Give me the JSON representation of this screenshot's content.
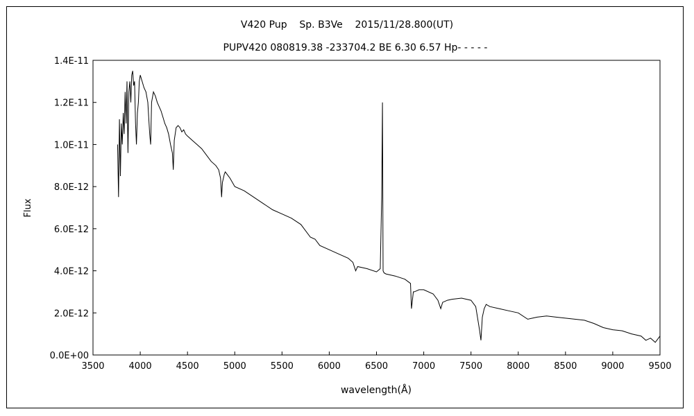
{
  "chart_data": {
    "type": "line",
    "title": "V420 Pup    Sp. B3Ve    2015/11/28.800(UT)",
    "subtitle": "PUPV420 080819.38 -233704.2 BE 6.30 6.57 Hp- - - - -",
    "xlabel": "wavelength(Å)",
    "ylabel": "Flux",
    "xlim": [
      3500,
      9500
    ],
    "ylim": [
      0,
      1.4e-11
    ],
    "x_ticks": [
      3500,
      4000,
      4500,
      5000,
      5500,
      6000,
      6500,
      7000,
      7500,
      8000,
      8500,
      9000,
      9500
    ],
    "x_tick_labels": [
      "3500",
      "4000",
      "4500",
      "5000",
      "5500",
      "6000",
      "6500",
      "7000",
      "7500",
      "8000",
      "8500",
      "9000",
      "9500"
    ],
    "y_ticks": [
      0,
      2e-12,
      4e-12,
      6e-12,
      8e-12,
      1e-11,
      1.2e-11,
      1.4e-11
    ],
    "y_tick_labels": [
      "0.0E+00",
      "2.0E-12",
      "4.0E-12",
      "6.0E-12",
      "8.0E-12",
      "1.0E-11",
      "1.2E-11",
      "1.4E-11"
    ],
    "grid": false,
    "series": [
      {
        "color": "#000000",
        "x": [
          3760,
          3770,
          3780,
          3790,
          3800,
          3810,
          3820,
          3830,
          3840,
          3850,
          3860,
          3870,
          3880,
          3890,
          3900,
          3910,
          3920,
          3930,
          3940,
          3950,
          3960,
          3970,
          3980,
          3990,
          4000,
          4020,
          4040,
          4060,
          4080,
          4100,
          4110,
          4120,
          4140,
          4160,
          4180,
          4200,
          4220,
          4240,
          4260,
          4280,
          4300,
          4320,
          4340,
          4350,
          4360,
          4380,
          4400,
          4420,
          4440,
          4460,
          4480,
          4500,
          4550,
          4600,
          4650,
          4700,
          4750,
          4800,
          4830,
          4850,
          4861,
          4870,
          4890,
          4900,
          4950,
          5000,
          5100,
          5200,
          5300,
          5400,
          5500,
          5600,
          5700,
          5800,
          5850,
          5900,
          6000,
          6100,
          6200,
          6250,
          6280,
          6300,
          6400,
          6500,
          6540,
          6555,
          6563,
          6570,
          6580,
          6600,
          6700,
          6800,
          6860,
          6870,
          6890,
          6900,
          6950,
          7000,
          7100,
          7150,
          7180,
          7200,
          7250,
          7300,
          7400,
          7500,
          7550,
          7590,
          7605,
          7620,
          7640,
          7660,
          7700,
          7800,
          7900,
          8000,
          8100,
          8150,
          8200,
          8300,
          8400,
          8500,
          8600,
          8700,
          8800,
          8900,
          9000,
          9100,
          9200,
          9300,
          9350,
          9400,
          9450,
          9500
        ],
        "y": [
          1e-11,
          7.5e-12,
          1.12e-11,
          8.5e-12,
          1.1e-11,
          1e-11,
          1.15e-11,
          1.05e-11,
          1.25e-11,
          1.1e-11,
          1.3e-11,
          9.6e-12,
          1.25e-11,
          1.3e-11,
          1.2e-11,
          1.33e-11,
          1.35e-11,
          1.28e-11,
          1.3e-11,
          1.1e-11,
          1e-11,
          1.15e-11,
          1.2e-11,
          1.3e-11,
          1.33e-11,
          1.3e-11,
          1.27e-11,
          1.25e-11,
          1.2e-11,
          1.05e-11,
          1e-11,
          1.2e-11,
          1.25e-11,
          1.23e-11,
          1.2e-11,
          1.18e-11,
          1.16e-11,
          1.13e-11,
          1.1e-11,
          1.08e-11,
          1.05e-11,
          1e-11,
          9.6e-12,
          8.8e-12,
          1.02e-11,
          1.08e-11,
          1.09e-11,
          1.08e-11,
          1.06e-11,
          1.07e-11,
          1.05e-11,
          1.04e-11,
          1.02e-11,
          1e-11,
          9.8e-12,
          9.5e-12,
          9.2e-12,
          9e-12,
          8.8e-12,
          8.4e-12,
          7.5e-12,
          8.2e-12,
          8.6e-12,
          8.7e-12,
          8.4e-12,
          8e-12,
          7.8e-12,
          7.5e-12,
          7.2e-12,
          6.9e-12,
          6.7e-12,
          6.5e-12,
          6.2e-12,
          5.6e-12,
          5.5e-12,
          5.2e-12,
          5e-12,
          4.8e-12,
          4.6e-12,
          4.4e-12,
          4e-12,
          4.2e-12,
          4.1e-12,
          3.95e-12,
          4.1e-12,
          7.5e-12,
          1.2e-11,
          4e-12,
          3.9e-12,
          3.85e-12,
          3.75e-12,
          3.6e-12,
          3.4e-12,
          2.2e-12,
          3e-12,
          3e-12,
          3.1e-12,
          3.1e-12,
          2.9e-12,
          2.6e-12,
          2.2e-12,
          2.5e-12,
          2.6e-12,
          2.65e-12,
          2.7e-12,
          2.6e-12,
          2.3e-12,
          1.2e-12,
          7e-13,
          1.8e-12,
          2.2e-12,
          2.4e-12,
          2.3e-12,
          2.2e-12,
          2.1e-12,
          2e-12,
          1.7e-12,
          1.75e-12,
          1.8e-12,
          1.85e-12,
          1.8e-12,
          1.75e-12,
          1.7e-12,
          1.65e-12,
          1.5e-12,
          1.3e-12,
          1.2e-12,
          1.15e-12,
          1e-12,
          9e-13,
          7e-13,
          8e-13,
          6e-13,
          9e-13
        ]
      }
    ]
  }
}
